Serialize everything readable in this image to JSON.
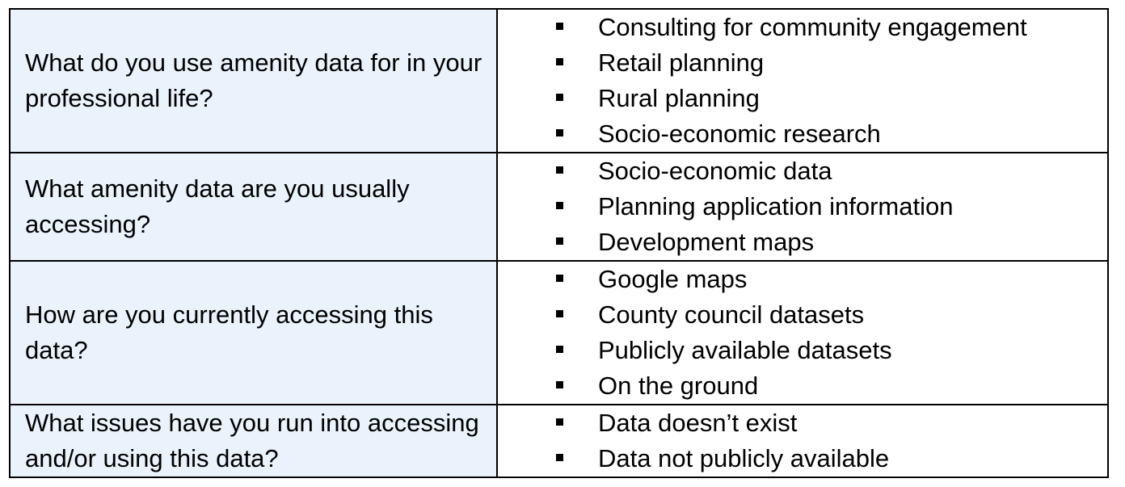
{
  "rows": [
    {
      "question": "What do you use amenity data for in your professional life?",
      "answers": [
        "Consulting for community engagement",
        "Retail planning",
        "Rural planning",
        "Socio-economic research"
      ]
    },
    {
      "question": "What amenity data are you usually accessing?",
      "answers": [
        "Socio-economic data",
        "Planning application information",
        "Development maps"
      ]
    },
    {
      "question": "How are you currently accessing this data?",
      "answers": [
        "Google maps",
        "County council datasets",
        "Publicly available datasets",
        "On the ground"
      ]
    },
    {
      "question": "What issues have you run into accessing and/or using this data?",
      "answers": [
        "Data doesn’t exist",
        "Data not publicly available"
      ]
    }
  ],
  "style": {
    "question_cell_bg": "#eaf2fb",
    "border_color": "#000000",
    "bullet_icon": "black-square-bullet"
  }
}
